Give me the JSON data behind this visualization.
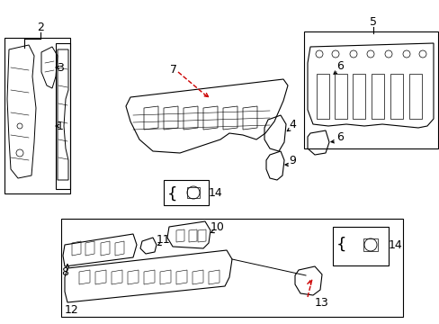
{
  "bg_color": "#ffffff",
  "line_color": "#000000",
  "red_color": "#cc0000",
  "gray_color": "#888888",
  "light_gray": "#cccccc",
  "fig_width": 4.89,
  "fig_height": 3.6,
  "dpi": 100
}
